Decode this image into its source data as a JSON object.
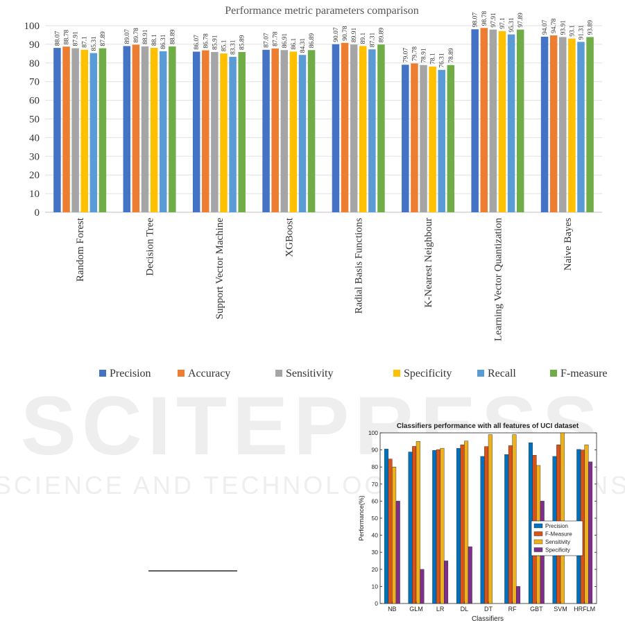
{
  "watermark": {
    "line1": "SCITEPRESS",
    "line2": "SCIENCE AND TECHNOLOGY PUBLICATIONS",
    "color": "#dddddd"
  },
  "chart_data": [
    {
      "type": "bar",
      "title": "Performance metric parameters comparison",
      "xlabel": "",
      "ylabel": "",
      "ylim": [
        0,
        100
      ],
      "yticks": [
        0,
        10,
        20,
        30,
        40,
        50,
        60,
        70,
        80,
        90,
        100
      ],
      "grid": true,
      "legend_position": "bottom",
      "data_labels": true,
      "categories": [
        "Random Forest",
        "Decision Tree",
        "Support Vector Machine",
        "XGBoost",
        "Radial Basis Functions",
        "K-Nearest Neighbour",
        "Learning Vector Quantization",
        "Naive Bayes"
      ],
      "series": [
        {
          "name": "Precision",
          "color": "#4472C4",
          "values": [
            88.07,
            89.07,
            86.07,
            87.07,
            90.07,
            79.07,
            98.07,
            94.07
          ]
        },
        {
          "name": "Accuracy",
          "color": "#ED7D31",
          "values": [
            88.78,
            89.78,
            86.78,
            87.78,
            90.78,
            79.78,
            98.78,
            94.78
          ]
        },
        {
          "name": "Sensitivity",
          "color": "#A5A5A5",
          "values": [
            87.91,
            88.91,
            85.91,
            86.91,
            89.91,
            78.91,
            97.91,
            93.91
          ]
        },
        {
          "name": "Specificity",
          "color": "#FFC000",
          "values": [
            87.1,
            88.1,
            85.1,
            86.1,
            89.1,
            78.1,
            97.1,
            93.1
          ]
        },
        {
          "name": "Recall",
          "color": "#5B9BD5",
          "values": [
            85.31,
            86.31,
            83.31,
            84.31,
            87.31,
            76.31,
            95.31,
            91.31
          ]
        },
        {
          "name": "F-measure",
          "color": "#70AD47",
          "values": [
            87.89,
            88.89,
            85.89,
            86.89,
            89.89,
            78.89,
            97.89,
            93.89
          ]
        }
      ]
    },
    {
      "type": "bar",
      "title": "Classifiers performance with all features of UCI dataset",
      "xlabel": "Classifiers",
      "ylabel": "Performance(%)",
      "ylim": [
        0,
        100
      ],
      "yticks": [
        0,
        10,
        20,
        30,
        40,
        50,
        60,
        70,
        80,
        90,
        100
      ],
      "grid": false,
      "legend_position": "right",
      "categories": [
        "NB",
        "GLM",
        "LR",
        "DL",
        "DT",
        "RF",
        "GBT",
        "SVM",
        "HRFLM"
      ],
      "series": [
        {
          "name": "Precision",
          "color": "#0072BD",
          "values": [
            90.5,
            88.8,
            89.7,
            90.9,
            86.2,
            87.3,
            94.2,
            86.2,
            90.3
          ]
        },
        {
          "name": "F-Measure",
          "color": "#D95319",
          "values": [
            84.7,
            92.1,
            90.2,
            93.0,
            92.0,
            92.5,
            86.9,
            93.0,
            90.0
          ]
        },
        {
          "name": "Sensitivity",
          "color": "#EDB120",
          "values": [
            80.0,
            95.0,
            91.0,
            95.2,
            99.0,
            99.0,
            80.9,
            100.0,
            93.0
          ]
        },
        {
          "name": "Specificity",
          "color": "#7E2F8E",
          "values": [
            60.0,
            20.0,
            25.0,
            33.3,
            0,
            10.0,
            60.0,
            0,
            83.0
          ]
        }
      ]
    }
  ]
}
